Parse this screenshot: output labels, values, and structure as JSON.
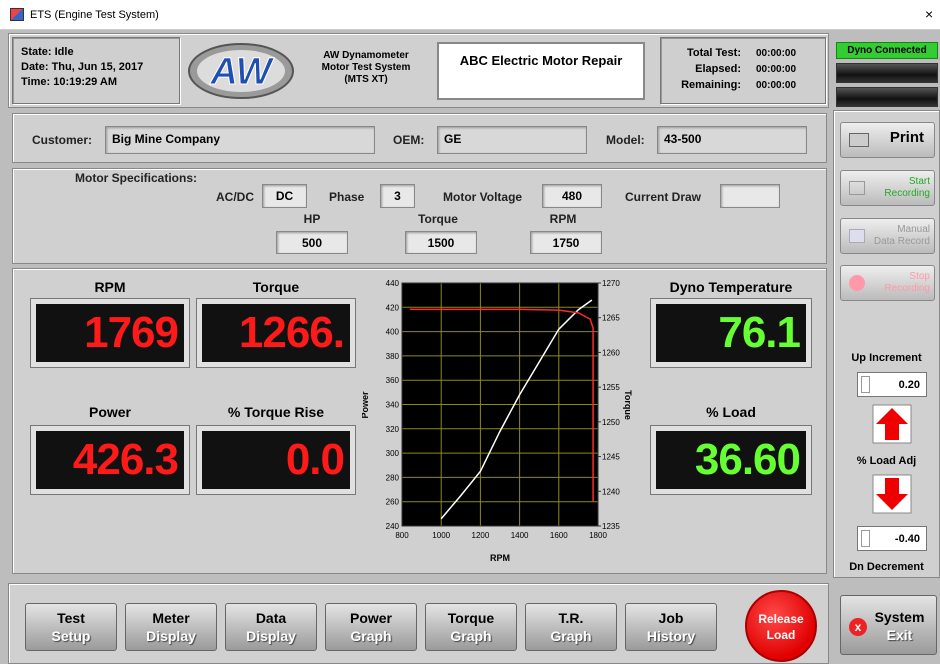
{
  "window": {
    "title": "ETS (Engine Test System)",
    "close": "×"
  },
  "header": {
    "state": {
      "label": "State:",
      "value": "Idle"
    },
    "date": {
      "label": "Date:",
      "value": "Thu, Jun 15, 2017"
    },
    "time": {
      "label": "Time:",
      "value": "10:19:29 AM"
    },
    "logo": "AW",
    "system_name": [
      "AW Dynamometer",
      "Motor Test System",
      "(MTS XT)"
    ],
    "shop": "ABC Electric Motor Repair",
    "timers": [
      {
        "label": "Total Test:",
        "value": "00:00:00"
      },
      {
        "label": "Elapsed:",
        "value": "00:00:00"
      },
      {
        "label": "Remaining:",
        "value": "00:00:00"
      }
    ],
    "connection": "Dyno Connected"
  },
  "customer": {
    "customer": {
      "label": "Customer:",
      "value": "Big Mine Company"
    },
    "oem": {
      "label": "OEM:",
      "value": "GE"
    },
    "model": {
      "label": "Model:",
      "value": "43-500"
    }
  },
  "specs": {
    "title": "Motor Specifications:",
    "acdc": {
      "label": "AC/DC",
      "value": "DC"
    },
    "phase": {
      "label": "Phase",
      "value": 3
    },
    "voltage": {
      "label": "Motor Voltage",
      "value": 480
    },
    "current": {
      "label": "Current Draw"
    },
    "hp": {
      "label": "HP",
      "value": 500
    },
    "torque": {
      "label": "Torque",
      "value": 1500
    },
    "rpm": {
      "label": "RPM",
      "value": 1750
    }
  },
  "meters": [
    {
      "label": "RPM",
      "value": "1769"
    },
    {
      "label": "Torque",
      "value": "1266."
    },
    {
      "label": "Power",
      "value": "426.3"
    },
    {
      "label": "% Torque Rise",
      "value": "0.0"
    },
    {
      "label": "Dyno Temperature",
      "value": "76.1"
    },
    {
      "label": "% Load",
      "value": "36.60"
    }
  ],
  "chart_data": {
    "type": "line",
    "xlabel": "RPM",
    "ylabel": "Power",
    "y2label": "Torque",
    "xlim": [
      800,
      1800
    ],
    "xticks": [
      800,
      1000,
      1200,
      1400,
      1600,
      1800
    ],
    "ylim": [
      240,
      440
    ],
    "yticks": [
      240,
      260,
      280,
      300,
      320,
      340,
      360,
      380,
      400,
      420,
      440
    ],
    "y2lim": [
      1235,
      1270
    ],
    "y2ticks": [
      1235,
      1240,
      1245,
      1250,
      1255,
      1260,
      1265,
      1270
    ],
    "grid": true,
    "series": [
      {
        "color": "#ffffff",
        "x": [
          1000,
          1100,
          1200,
          1300,
          1400,
          1500,
          1600,
          1700,
          1769
        ],
        "values": [
          246,
          265,
          285,
          318,
          348,
          375,
          402,
          418,
          426
        ]
      },
      {
        "color": "#ff2a2a",
        "axis": "y2",
        "x": [
          840,
          1000,
          1200,
          1400,
          1600,
          1700,
          1760,
          1775,
          1775
        ],
        "values": [
          1266.2,
          1266.2,
          1266.2,
          1266.2,
          1266.1,
          1265.7,
          1264.8,
          1263.5,
          1238.5
        ]
      }
    ]
  },
  "side": {
    "print": "Print",
    "start": [
      "Start",
      "Recording"
    ],
    "manual": [
      "Manual",
      "Data Record"
    ],
    "stop": [
      "Stop",
      "Recording"
    ],
    "up_label": "Up Increment",
    "up_value": "0.20",
    "adj_label": "% Load Adj",
    "dn_value": "-0.40",
    "dn_label": "Dn Decrement"
  },
  "nav": [
    [
      "Test",
      "Setup"
    ],
    [
      "Meter",
      "Display"
    ],
    [
      "Data",
      "Display"
    ],
    [
      "Power",
      "Graph"
    ],
    [
      "Torque",
      "Graph"
    ],
    [
      "T.R.",
      "Graph"
    ],
    [
      "Job",
      "History"
    ]
  ],
  "release": [
    "Release",
    "Load"
  ],
  "exit": [
    "System",
    "Exit"
  ]
}
